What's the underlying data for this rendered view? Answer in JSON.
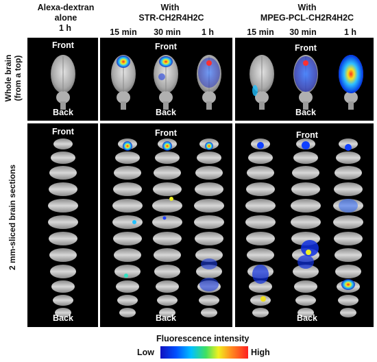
{
  "headers": {
    "alexa": "Alexa-dextran\nalone",
    "alexa_time": "1 h",
    "str_with": "With",
    "str_name": "STR-CH2R4H2C",
    "mpeg_with": "With",
    "mpeg_name": "MPEG-PCL-CH2R4H2C",
    "times": [
      "15 min",
      "30 min",
      "1 h",
      "15 min",
      "30 min",
      "1 h"
    ]
  },
  "row_labels": {
    "whole": "Whole brain\n(from a top)",
    "sliced": "2 mm-sliced brain sections"
  },
  "orientation": {
    "front": "Front",
    "back": "Back"
  },
  "legend": {
    "title": "Fluorescence intensity",
    "low": "Low",
    "high": "High"
  },
  "colors": {
    "panel_bg": "#000000",
    "low": "#1010c0",
    "high": "#ff2020"
  }
}
